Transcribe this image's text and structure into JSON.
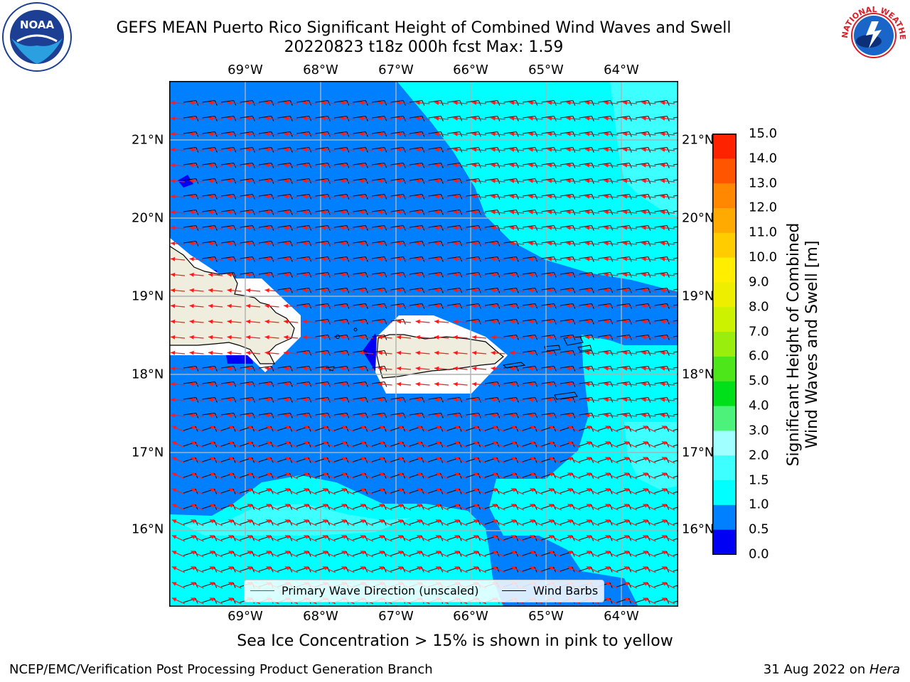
{
  "title": {
    "line1": "GEFS MEAN Puerto Rico Significant Height of Combined Wind Waves and Swell",
    "line2": "20220823 t18z 000h fcst   Max: 1.59"
  },
  "map": {
    "region": "Puerto Rico",
    "lon_labels": [
      "69°W",
      "68°W",
      "67°W",
      "66°W",
      "65°W",
      "64°W"
    ],
    "lat_labels": [
      "21°N",
      "20°N",
      "19°N",
      "18°N",
      "17°N",
      "16°N"
    ],
    "colors": {
      "land": "#efedde",
      "coast": "#000000",
      "wave_0_05": "#0000f5",
      "wave_05_10": "#0080ff",
      "wave_10_15": "#00ffff",
      "wave_15_20": "#3dffff",
      "arrows": "#ff1a1a",
      "barbs": "#000000",
      "grid": "#b0b0b0"
    }
  },
  "colorbar": {
    "label_line1": "Significant Height of Combined",
    "label_line2": "Wind Waves and Swell [m]",
    "ticks": [
      "0.0",
      "0.5",
      "1.0",
      "1.5",
      "2.0",
      "3.0",
      "4.0",
      "5.0",
      "6.0",
      "7.0",
      "8.0",
      "9.0",
      "10.0",
      "11.0",
      "12.0",
      "13.0",
      "14.0",
      "15.0"
    ],
    "colors": [
      "#0000f5",
      "#0080ff",
      "#00ffff",
      "#3dffff",
      "#a0ffff",
      "#4df27a",
      "#00e01a",
      "#4ce61a",
      "#99ee0d",
      "#cdf200",
      "#eeee00",
      "#ffee00",
      "#ffcc00",
      "#ffaa00",
      "#ff8800",
      "#ff5500",
      "#ff2200"
    ]
  },
  "legend": {
    "wave_direction": "Primary Wave Direction (unscaled)",
    "wind_barbs": "Wind Barbs"
  },
  "footer": {
    "note": "Sea Ice Concentration > 15% is shown in pink to yellow",
    "left": "NCEP/EMC/Verification Post Processing Product Generation Branch",
    "right_date": "31 Aug 2022 on ",
    "right_host": "Hera"
  },
  "logos": {
    "noaa": "NOAA",
    "nws_ring": "NATIONAL WEATHER SERVICE"
  }
}
